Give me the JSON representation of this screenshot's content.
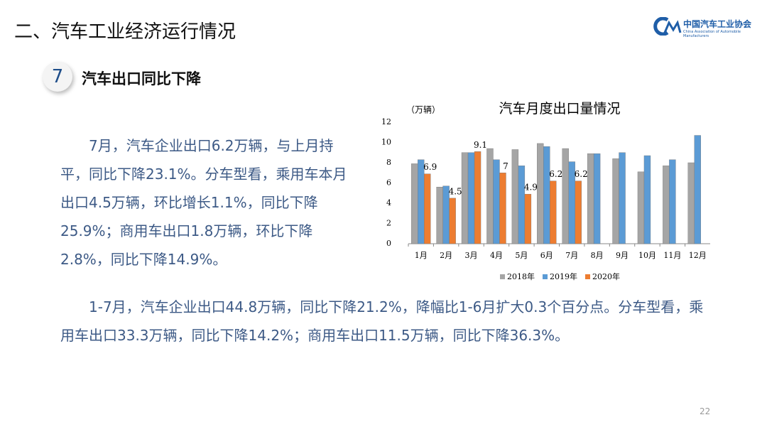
{
  "header": {
    "title": "二、汽车工业经济运行情况",
    "logo_cn": "中国汽车工业协会",
    "logo_en": "China Association of Automobile Manufacturers"
  },
  "section": {
    "number": "7",
    "title": "汽车出口同比下降"
  },
  "paragraphs": [
    "7月，汽车企业出口6.2万辆，与上月持平，同比下降23.1%。分车型看，乘用车本月出口4.5万辆，环比增长1.1%，同比下降25.9%；商用车出口1.8万辆，环比下降2.8%，同比下降14.9%。",
    "1-7月，汽车企业出口44.8万辆，同比下降21.2%，降幅比1-6月扩大0.3个百分点。分车型看，乘用车出口33.3万辆，同比下降14.2%；商用车出口11.5万辆，同比下降36.3%。"
  ],
  "chart_data": {
    "type": "bar",
    "title": "汽车月度出口量情况",
    "y_label": "（万辆）",
    "categories": [
      "1月",
      "2月",
      "3月",
      "4月",
      "5月",
      "6月",
      "7月",
      "8月",
      "9月",
      "10月",
      "11月",
      "12月"
    ],
    "series": [
      {
        "name": "2018年",
        "color": "#a5a5a5",
        "values": [
          7.9,
          5.6,
          9.0,
          9.4,
          9.3,
          9.9,
          9.4,
          8.9,
          8.4,
          7.1,
          7.7,
          8.0
        ]
      },
      {
        "name": "2019年",
        "color": "#5b9bd5",
        "values": [
          8.3,
          5.7,
          9.0,
          8.3,
          7.7,
          9.6,
          8.1,
          8.9,
          9.0,
          8.7,
          8.3,
          10.7
        ]
      },
      {
        "name": "2020年",
        "color": "#ed7d31",
        "values": [
          6.9,
          4.5,
          9.1,
          7,
          4.9,
          6.2,
          6.2,
          null,
          null,
          null,
          null,
          null
        ],
        "data_labels": true
      }
    ],
    "ylim": [
      0,
      12
    ],
    "yticks": [
      0,
      2,
      4,
      6,
      8,
      10,
      12
    ],
    "grid": false,
    "legend": "bottom"
  },
  "page_number": "22"
}
